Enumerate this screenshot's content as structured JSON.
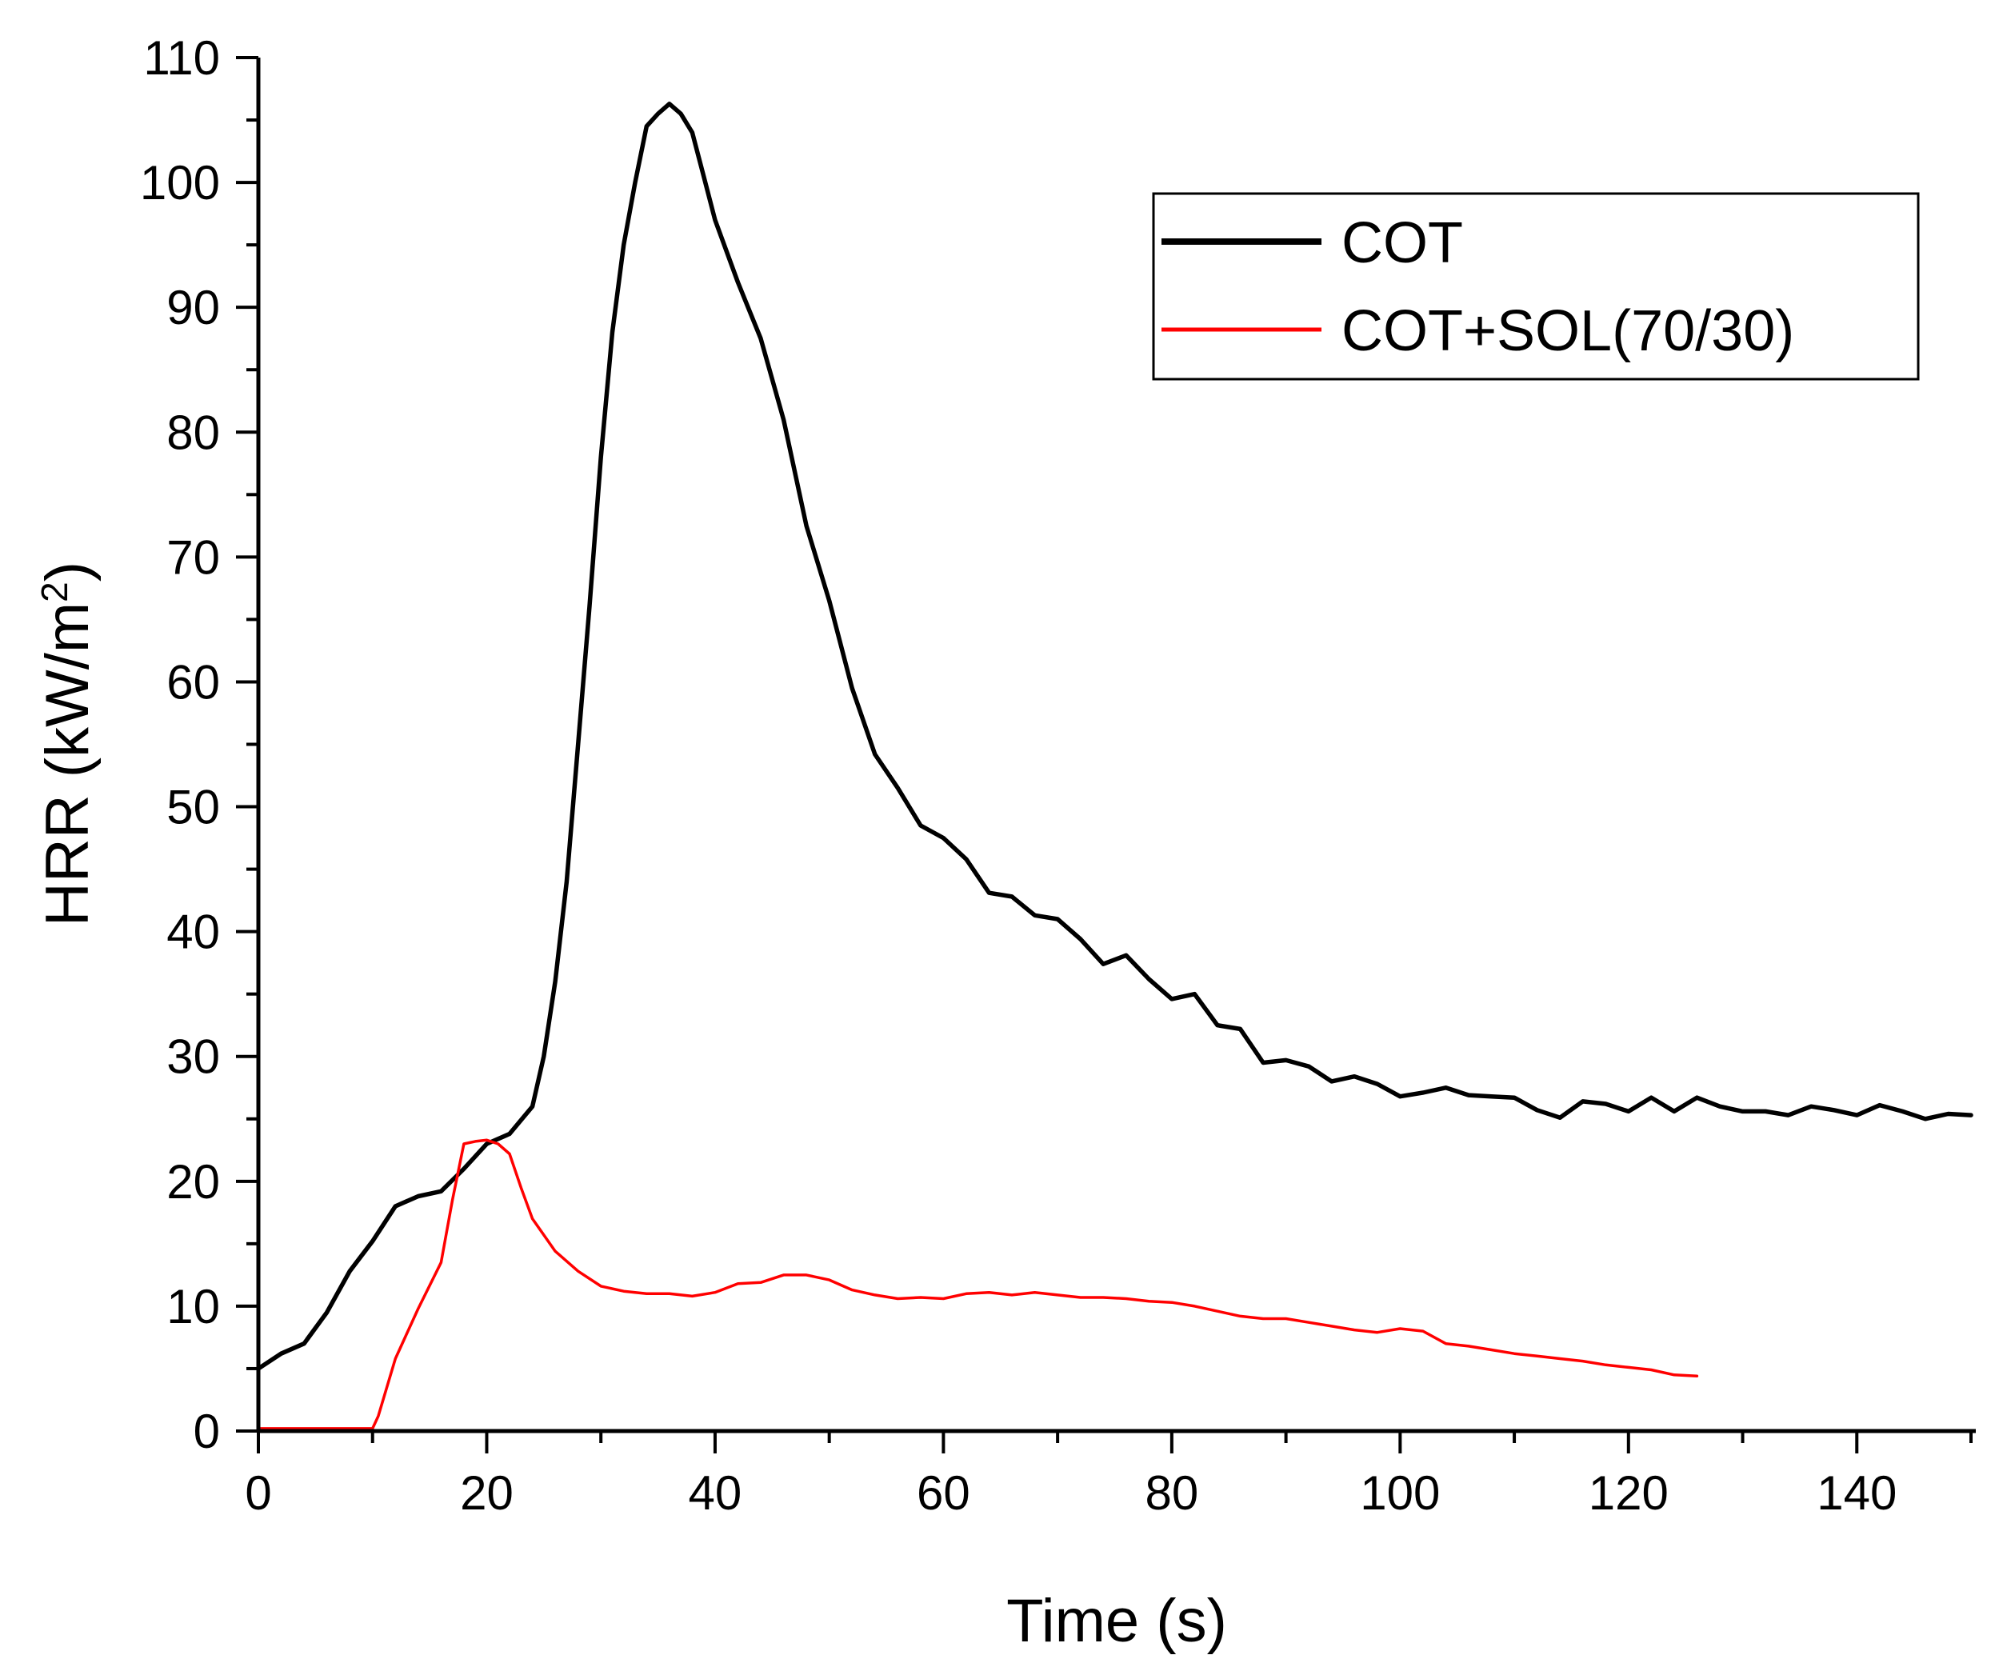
{
  "chart_data": {
    "type": "line",
    "title": "",
    "xlabel": "Time (s)",
    "ylabel_main": "HRR (kW/m",
    "ylabel_sup": "2",
    "ylabel_close": ")",
    "xlim": [
      0,
      150
    ],
    "ylim": [
      0,
      110
    ],
    "xticks": [
      0,
      20,
      40,
      60,
      80,
      100,
      120,
      140
    ],
    "yticks": [
      0,
      10,
      20,
      30,
      40,
      50,
      60,
      70,
      80,
      90,
      100,
      110
    ],
    "grid": false,
    "legend_position": "top-right",
    "series": [
      {
        "name": "COT",
        "color": "#000000",
        "width": "thick",
        "points": [
          [
            0,
            5
          ],
          [
            2,
            6.2
          ],
          [
            4,
            7
          ],
          [
            6,
            9.5
          ],
          [
            8,
            12.8
          ],
          [
            10,
            15.2
          ],
          [
            12,
            18
          ],
          [
            14,
            18.8
          ],
          [
            16,
            19.2
          ],
          [
            18,
            21
          ],
          [
            20,
            23
          ],
          [
            22,
            23.8
          ],
          [
            24,
            26
          ],
          [
            25,
            30
          ],
          [
            26,
            36
          ],
          [
            27,
            44
          ],
          [
            28,
            55
          ],
          [
            29,
            66
          ],
          [
            30,
            78
          ],
          [
            31,
            88
          ],
          [
            32,
            95
          ],
          [
            33,
            100
          ],
          [
            34,
            104.5
          ],
          [
            35,
            105.5
          ],
          [
            36,
            106.3
          ],
          [
            37,
            105.5
          ],
          [
            38,
            104
          ],
          [
            39,
            100.5
          ],
          [
            40,
            97
          ],
          [
            42,
            92
          ],
          [
            44,
            87.5
          ],
          [
            46,
            81
          ],
          [
            48,
            72.5
          ],
          [
            50,
            66.5
          ],
          [
            52,
            59.5
          ],
          [
            54,
            54.2
          ],
          [
            56,
            51.5
          ],
          [
            58,
            48.5
          ],
          [
            60,
            47.5
          ],
          [
            62,
            45.8
          ],
          [
            64,
            43.1
          ],
          [
            66,
            42.8
          ],
          [
            68,
            41.3
          ],
          [
            70,
            41
          ],
          [
            72,
            39.4
          ],
          [
            74,
            37.4
          ],
          [
            76,
            38.1
          ],
          [
            78,
            36.2
          ],
          [
            80,
            34.6
          ],
          [
            82,
            35
          ],
          [
            84,
            32.5
          ],
          [
            86,
            32.2
          ],
          [
            88,
            29.5
          ],
          [
            90,
            29.7
          ],
          [
            92,
            29.2
          ],
          [
            94,
            28
          ],
          [
            96,
            28.4
          ],
          [
            98,
            27.8
          ],
          [
            100,
            26.8
          ],
          [
            102,
            27.1
          ],
          [
            104,
            27.5
          ],
          [
            106,
            26.9
          ],
          [
            108,
            26.8
          ],
          [
            110,
            26.7
          ],
          [
            112,
            25.7
          ],
          [
            114,
            25.1
          ],
          [
            116,
            26.4
          ],
          [
            118,
            26.2
          ],
          [
            120,
            25.6
          ],
          [
            122,
            26.7
          ],
          [
            124,
            25.6
          ],
          [
            126,
            26.7
          ],
          [
            128,
            26
          ],
          [
            130,
            25.6
          ],
          [
            132,
            25.6
          ],
          [
            134,
            25.3
          ],
          [
            136,
            26
          ],
          [
            138,
            25.7
          ],
          [
            140,
            25.3
          ],
          [
            142,
            26.1
          ],
          [
            144,
            25.6
          ],
          [
            146,
            25
          ],
          [
            148,
            25.4
          ],
          [
            150,
            25.3
          ]
        ]
      },
      {
        "name": "COT+SOL(70/30)",
        "color": "#ff0000",
        "width": "thin",
        "points": [
          [
            0,
            0.2
          ],
          [
            2,
            0.2
          ],
          [
            4,
            0.2
          ],
          [
            6,
            0.2
          ],
          [
            8,
            0.2
          ],
          [
            10,
            0.2
          ],
          [
            10.5,
            1.2
          ],
          [
            12,
            5.8
          ],
          [
            14,
            9.8
          ],
          [
            16,
            13.5
          ],
          [
            17,
            18.5
          ],
          [
            18,
            23
          ],
          [
            19,
            23.2
          ],
          [
            20,
            23.3
          ],
          [
            21,
            23
          ],
          [
            22,
            22.2
          ],
          [
            23,
            19.5
          ],
          [
            24,
            17
          ],
          [
            26,
            14.4
          ],
          [
            28,
            12.8
          ],
          [
            30,
            11.6
          ],
          [
            32,
            11.2
          ],
          [
            34,
            11
          ],
          [
            36,
            11
          ],
          [
            38,
            10.8
          ],
          [
            40,
            11.1
          ],
          [
            42,
            11.8
          ],
          [
            44,
            11.9
          ],
          [
            46,
            12.5
          ],
          [
            48,
            12.5
          ],
          [
            50,
            12.1
          ],
          [
            52,
            11.3
          ],
          [
            54,
            10.9
          ],
          [
            56,
            10.6
          ],
          [
            58,
            10.7
          ],
          [
            60,
            10.6
          ],
          [
            62,
            11
          ],
          [
            64,
            11.1
          ],
          [
            66,
            10.9
          ],
          [
            68,
            11.1
          ],
          [
            70,
            10.9
          ],
          [
            72,
            10.7
          ],
          [
            74,
            10.7
          ],
          [
            76,
            10.6
          ],
          [
            78,
            10.4
          ],
          [
            80,
            10.3
          ],
          [
            82,
            10
          ],
          [
            84,
            9.6
          ],
          [
            86,
            9.2
          ],
          [
            88,
            9
          ],
          [
            90,
            9
          ],
          [
            92,
            8.7
          ],
          [
            94,
            8.4
          ],
          [
            96,
            8.1
          ],
          [
            98,
            7.9
          ],
          [
            100,
            8.2
          ],
          [
            102,
            8
          ],
          [
            104,
            7
          ],
          [
            106,
            6.8
          ],
          [
            108,
            6.5
          ],
          [
            110,
            6.2
          ],
          [
            112,
            6
          ],
          [
            114,
            5.8
          ],
          [
            116,
            5.6
          ],
          [
            118,
            5.3
          ],
          [
            120,
            5.1
          ],
          [
            122,
            4.9
          ],
          [
            124,
            4.5
          ],
          [
            126,
            4.4
          ]
        ]
      }
    ]
  }
}
